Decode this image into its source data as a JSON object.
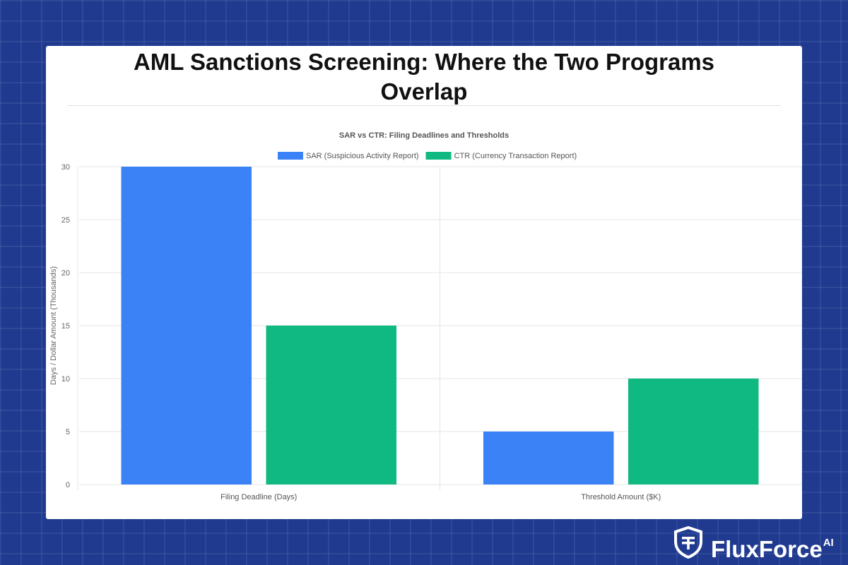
{
  "page": {
    "title": "AML Sanctions Screening: Where the Two Programs Overlap"
  },
  "brand": {
    "name": "FluxForce",
    "suffix": "AI",
    "icon": "shield-icon",
    "color": "#ffffff"
  },
  "colors": {
    "background": "#1f3a8f",
    "sar": "#3b82f6",
    "ctr": "#10b981"
  },
  "chart_data": {
    "type": "bar",
    "title": "SAR vs CTR: Filing Deadlines and Thresholds",
    "categories": [
      "Filing Deadline (Days)",
      "Threshold Amount ($K)"
    ],
    "series": [
      {
        "name": "SAR (Suspicious Activity Report)",
        "values": [
          30,
          5
        ],
        "color": "#3b82f6"
      },
      {
        "name": "CTR (Currency Transaction Report)",
        "values": [
          15,
          10
        ],
        "color": "#10b981"
      }
    ],
    "xlabel": "",
    "ylabel": "Days / Dollar Amount (Thousands)",
    "ylim": [
      0,
      30
    ],
    "yticks": [
      0,
      5,
      10,
      15,
      20,
      25,
      30
    ],
    "grid": true,
    "legend_position": "top"
  }
}
